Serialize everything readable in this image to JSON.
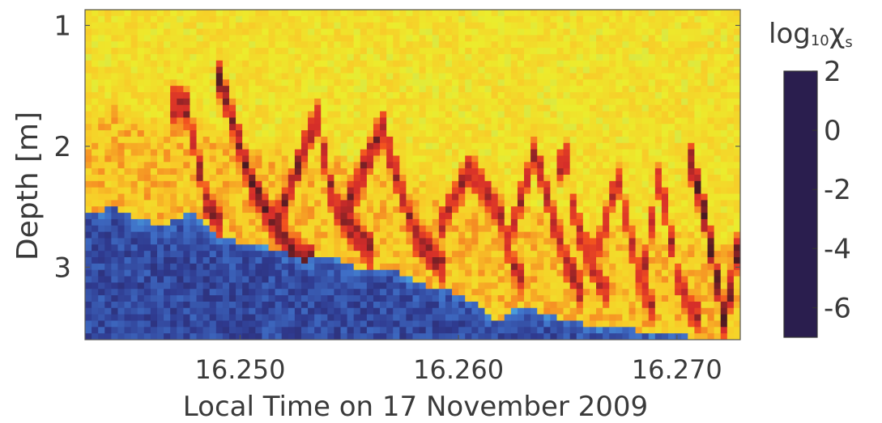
{
  "chart_data": {
    "type": "heatmap",
    "xlabel": "Local Time on 17 November 2009",
    "ylabel": "Depth [m]",
    "xlim": [
      16.2429,
      16.2729
    ],
    "ylim": [
      3.6,
      0.87
    ],
    "x_ticks": [
      16.25,
      16.26,
      16.27
    ],
    "x_tick_labels": [
      "16.250",
      "16.260",
      "16.270"
    ],
    "y_ticks": [
      1,
      2,
      3
    ],
    "y_tick_labels": [
      "1",
      "2",
      "3"
    ],
    "colorbar": {
      "label_base": "log",
      "label_subscript": "10",
      "label_symbol": "χ",
      "label_symbol_subscript": "s",
      "range": [
        -7,
        2
      ],
      "ticks": [
        2,
        0,
        -2,
        -4,
        -6
      ],
      "tick_labels": [
        "2",
        "0",
        "-2",
        "-4",
        "-6"
      ],
      "colors": [
        "#2a1e4e",
        "#2f3a8f",
        "#3f6fc7",
        "#4fb9e6",
        "#79d2b8",
        "#ecec2c",
        "#f8cb28",
        "#f3541f",
        "#d42c2a",
        "#4a1a22"
      ]
    },
    "grid": false,
    "layers": {
      "surface_value": -3.6,
      "upper_value": -3.4,
      "band_value": -1.0,
      "bottom_value": -5.7
    },
    "interface": {
      "x": [
        16.2429,
        16.2436,
        16.2441,
        16.245,
        16.2464,
        16.2477,
        16.249,
        16.2503,
        16.2516,
        16.253,
        16.2543,
        16.2556,
        16.257,
        16.2583,
        16.2596,
        16.2608,
        16.2618,
        16.263,
        16.2641,
        16.2652,
        16.2664,
        16.2676,
        16.2688,
        16.27,
        16.2712,
        16.2729
      ],
      "depth": [
        2.52,
        2.58,
        2.45,
        2.6,
        2.65,
        2.55,
        2.75,
        2.8,
        2.85,
        2.95,
        2.9,
        3.05,
        3.0,
        3.15,
        3.2,
        3.3,
        3.45,
        3.3,
        3.4,
        3.45,
        3.5,
        3.5,
        3.55,
        3.55,
        3.6,
        3.6
      ]
    },
    "red_ridges": [
      {
        "x": [
          16.2469,
          16.2475,
          16.2485,
          16.2491
        ],
        "depth": [
          1.65,
          1.65,
          2.5,
          2.65
        ],
        "peak": 1.3
      },
      {
        "x": [
          16.2491,
          16.2505,
          16.2522,
          16.2531
        ],
        "depth": [
          1.45,
          2.3,
          2.85,
          2.95
        ],
        "peak": 1.5
      },
      {
        "x": [
          16.2518,
          16.2535,
          16.2543,
          16.2559
        ],
        "depth": [
          2.6,
          1.75,
          2.5,
          2.85
        ],
        "peak": 1.4
      },
      {
        "x": [
          16.2548,
          16.2565,
          16.258,
          16.2593
        ],
        "depth": [
          2.55,
          1.85,
          2.75,
          3.0
        ],
        "peak": 1.3
      },
      {
        "x": [
          16.2592,
          16.2605,
          16.2619,
          16.2627
        ],
        "depth": [
          2.65,
          2.2,
          2.55,
          3.1
        ],
        "peak": 1.1
      },
      {
        "x": [
          16.2622,
          16.2635,
          16.2649,
          16.2656
        ],
        "depth": [
          2.85,
          2.05,
          2.95,
          3.2
        ],
        "peak": 1.2
      },
      {
        "x": [
          16.2644,
          16.2648,
          16.2653,
          16.2666
        ],
        "depth": [
          2.65,
          1.9,
          2.6,
          3.2
        ],
        "peak": 1.0
      },
      {
        "x": [
          16.2663,
          16.2673,
          16.2682,
          16.2689
        ],
        "depth": [
          2.9,
          2.25,
          3.05,
          3.35
        ],
        "peak": 1.0
      },
      {
        "x": [
          16.2685,
          16.2692,
          16.2701,
          16.2708
        ],
        "depth": [
          3.0,
          2.25,
          3.15,
          3.4
        ],
        "peak": 1.1
      },
      {
        "x": [
          16.2707,
          16.2713,
          16.2722,
          16.2729
        ],
        "depth": [
          2.15,
          2.6,
          3.45,
          2.75
        ],
        "peak": 1.9
      }
    ]
  }
}
